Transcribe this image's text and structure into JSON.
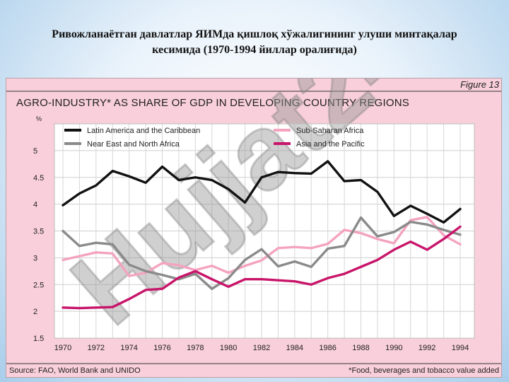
{
  "slide": {
    "title_line1": "Ривожланаётган давлатлар ЯИМда қишлоқ хўжалигининг улуши минтақалар",
    "title_line2": "кесимида (1970-1994 йиллар оралиғида)"
  },
  "figure": {
    "label": "Figure 13",
    "source": "Source: FAO, World Bank and UNIDO",
    "footnote": "*Food, beverages and tobacco value added",
    "watermark": "Hujjat24"
  },
  "colors": {
    "background": "#f8cfdb",
    "plot": "#ffffff",
    "latin_america": "#111111",
    "sub_saharan": "#f4a3c0",
    "near_east": "#8a8a8a",
    "asia_pacific": "#c8156a"
  },
  "chart_data": {
    "type": "line",
    "title": "AGRO-INDUSTRY* AS SHARE OF GDP IN DEVELOPING COUNTRY REGIONS",
    "ylabel": "%",
    "xlabel": "",
    "ylim": [
      1.5,
      5.5
    ],
    "xlim": [
      1970,
      1994
    ],
    "yticks": [
      "1.5",
      "2",
      "2.5",
      "3",
      "3.5",
      "4",
      "4.5",
      "5"
    ],
    "xticks": [
      "1970",
      "1972",
      "1974",
      "1976",
      "1978",
      "1980",
      "1982",
      "1984",
      "1986",
      "1988",
      "1990",
      "1992",
      "1994"
    ],
    "grid": true,
    "legend_position": "top-left",
    "x": [
      1970,
      1971,
      1972,
      1973,
      1974,
      1975,
      1976,
      1977,
      1978,
      1979,
      1980,
      1981,
      1982,
      1983,
      1984,
      1985,
      1986,
      1987,
      1988,
      1989,
      1990,
      1991,
      1992,
      1993,
      1994
    ],
    "series": [
      {
        "name": "Latin America and the Caribbean",
        "color": "#111111",
        "values": [
          3.98,
          4.2,
          4.35,
          4.62,
          4.52,
          4.4,
          4.7,
          4.45,
          4.5,
          4.45,
          4.28,
          4.03,
          4.5,
          4.6,
          4.58,
          4.57,
          4.8,
          4.43,
          4.45,
          4.23,
          3.78,
          3.97,
          3.82,
          3.66,
          3.91
        ]
      },
      {
        "name": "Sub-Saharan Africa",
        "color": "#f4a3c0",
        "values": [
          2.96,
          3.03,
          3.1,
          3.08,
          2.66,
          2.72,
          2.9,
          2.86,
          2.77,
          2.85,
          2.72,
          2.85,
          2.95,
          3.18,
          3.2,
          3.18,
          3.26,
          3.52,
          3.46,
          3.35,
          3.27,
          3.7,
          3.76,
          3.42,
          3.25
        ]
      },
      {
        "name": "Near East and North Africa",
        "color": "#8a8a8a",
        "values": [
          3.5,
          3.22,
          3.28,
          3.25,
          2.87,
          2.75,
          2.68,
          2.6,
          2.7,
          2.42,
          2.62,
          2.96,
          3.16,
          2.84,
          2.93,
          2.83,
          3.17,
          3.22,
          3.75,
          3.4,
          3.48,
          3.67,
          3.62,
          3.52,
          3.43
        ]
      },
      {
        "name": "Asia and the Pacific",
        "color": "#c8156a",
        "values": [
          2.07,
          2.06,
          2.07,
          2.08,
          2.23,
          2.4,
          2.42,
          2.63,
          2.75,
          2.6,
          2.46,
          2.6,
          2.6,
          2.58,
          2.56,
          2.5,
          2.62,
          2.7,
          2.83,
          2.96,
          3.15,
          3.3,
          3.15,
          3.35,
          3.58
        ]
      }
    ]
  }
}
